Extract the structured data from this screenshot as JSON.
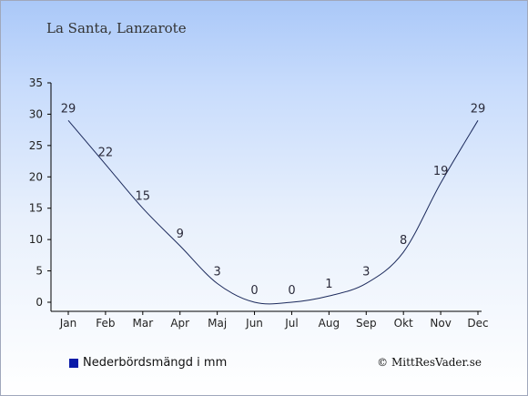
{
  "title": "La Santa, Lanzarote",
  "credit": "© MittResVader.se",
  "colors": {
    "line": "#1c2a5c",
    "legend_swatch": "#0a1aa8"
  },
  "chart_data": {
    "type": "line",
    "title": "La Santa, Lanzarote",
    "categories": [
      "Jan",
      "Feb",
      "Mar",
      "Apr",
      "Maj",
      "Jun",
      "Jul",
      "Aug",
      "Sep",
      "Okt",
      "Nov",
      "Dec"
    ],
    "series": [
      {
        "name": "Nederbördsmängd i mm",
        "values": [
          29,
          22,
          15,
          9,
          3,
          0,
          0,
          1,
          3,
          8,
          19,
          29
        ]
      }
    ],
    "ylim": [
      0,
      35
    ],
    "yticks": [
      0,
      5,
      10,
      15,
      20,
      25,
      30,
      35
    ],
    "xlabel": "",
    "ylabel": "",
    "grid": false,
    "legend": "bottom-left"
  }
}
